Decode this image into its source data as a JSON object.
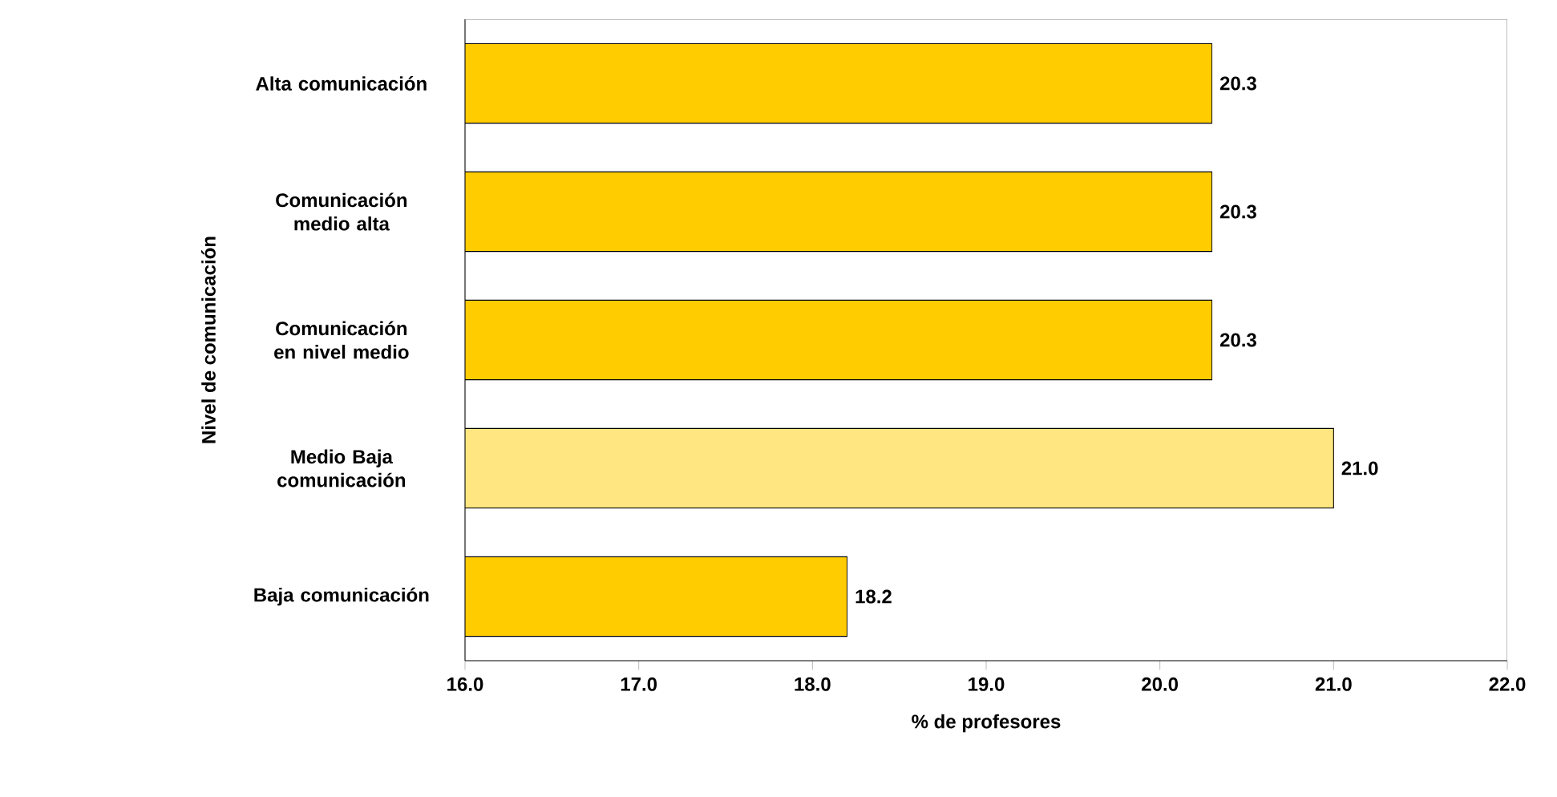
{
  "chart_data": {
    "type": "bar",
    "orientation": "horizontal",
    "xlabel": "% de profesores",
    "ylabel": "Nivel de comunicación",
    "categories": [
      "Alta comunicación",
      "Comunicación medio alta",
      "Comunicación en nivel medio",
      "Medio Baja comunicación",
      "Baja comunicación"
    ],
    "values": [
      20.3,
      20.3,
      20.3,
      21.0,
      18.2
    ],
    "colors": [
      "#ffcc00",
      "#ffcc00",
      "#ffcc00",
      "#ffe680",
      "#ffcc00"
    ],
    "xlim": [
      16.0,
      22.0
    ],
    "xticks": [
      {
        "value": 16,
        "label": "16.0"
      },
      {
        "value": 17,
        "label": "17.0"
      },
      {
        "value": 18,
        "label": "18.0"
      },
      {
        "value": 19,
        "label": "19.0"
      },
      {
        "value": 20,
        "label": "20.0"
      },
      {
        "value": 21,
        "label": "21.0"
      },
      {
        "value": 22,
        "label": "22.0"
      }
    ],
    "value_labels": [
      "20.3",
      "20.3",
      "20.3",
      "21.0",
      "18.2"
    ],
    "grid": false
  }
}
